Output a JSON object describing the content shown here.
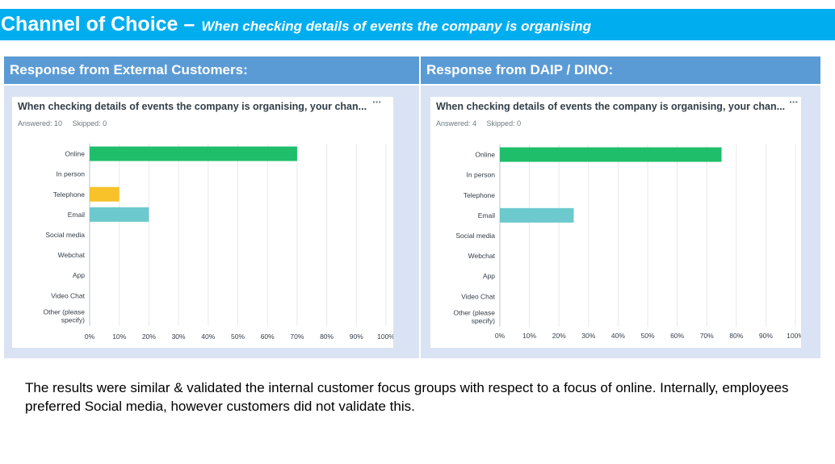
{
  "header": {
    "title": "Channel of Choice –",
    "subtitle": "When checking details of events the company is organising"
  },
  "panels": [
    {
      "heading": "Response from External Customers:",
      "card_title": "When checking details of events the company is organising, your chan...",
      "answered": "Answered: 10",
      "skipped": "Skipped: 0",
      "menu_icon": "more-options-icon"
    },
    {
      "heading": "Response from DAIP / DINO:",
      "card_title": "When checking details of events the company is organising, your chan...",
      "answered": "Answered: 4",
      "skipped": "Skipped: 0",
      "menu_icon": "more-options-icon"
    }
  ],
  "chart_data": [
    {
      "type": "bar",
      "orientation": "horizontal",
      "categories": [
        "Online",
        "In person",
        "Telephone",
        "Email",
        "Social media",
        "Webchat",
        "App",
        "Video Chat",
        "Other (please specify)"
      ],
      "values": [
        70,
        0,
        10,
        20,
        0,
        0,
        0,
        0,
        0
      ],
      "colors": [
        "#1fbe6a",
        "#f7c22a",
        "#f7c22a",
        "#6cc9ce",
        "#cccccc",
        "#cccccc",
        "#cccccc",
        "#cccccc",
        "#cccccc"
      ],
      "xlim": [
        0,
        100
      ],
      "xticks": [
        "0%",
        "10%",
        "20%",
        "30%",
        "40%",
        "50%",
        "60%",
        "70%",
        "80%",
        "90%",
        "100%"
      ],
      "grid": true
    },
    {
      "type": "bar",
      "orientation": "horizontal",
      "categories": [
        "Online",
        "In person",
        "Telephone",
        "Email",
        "Social media",
        "Webchat",
        "App",
        "Video Chat",
        "Other (please specify)"
      ],
      "values": [
        75,
        0,
        0,
        25,
        0,
        0,
        0,
        0,
        0
      ],
      "colors": [
        "#1fbe6a",
        "#cccccc",
        "#f7c22a",
        "#6cc9ce",
        "#cccccc",
        "#cccccc",
        "#cccccc",
        "#cccccc",
        "#cccccc"
      ],
      "xlim": [
        0,
        100
      ],
      "xticks": [
        "0%",
        "10%",
        "20%",
        "30%",
        "40%",
        "50%",
        "60%",
        "70%",
        "80%",
        "90%",
        "100%"
      ],
      "grid": true
    }
  ],
  "footer": {
    "text": "The results were similar & validated the internal customer focus groups with respect to a focus of online. Internally, employees preferred Social media, however customers did not validate this."
  }
}
